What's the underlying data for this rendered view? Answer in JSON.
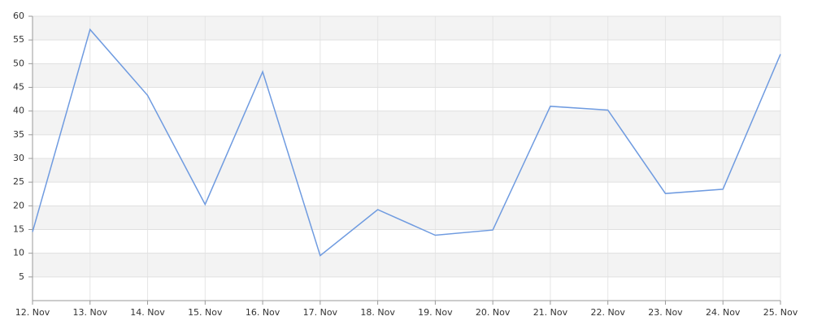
{
  "chart_data": {
    "type": "line",
    "categories": [
      "12. Nov",
      "13. Nov",
      "14. Nov",
      "15. Nov",
      "16. Nov",
      "17. Nov",
      "18. Nov",
      "19. Nov",
      "20. Nov",
      "21. Nov",
      "22. Nov",
      "23. Nov",
      "24. Nov",
      "25. Nov"
    ],
    "series": [
      {
        "color": "#6f9be0",
        "values": [
          14.5,
          57.2,
          43.3,
          20.3,
          48.3,
          9.5,
          19.2,
          13.8,
          14.9,
          41,
          40.2,
          22.6,
          23.5,
          52
        ]
      }
    ],
    "ylim": [
      0,
      60
    ],
    "yticks": [
      5,
      10,
      15,
      20,
      25,
      30,
      35,
      40,
      45,
      50,
      55,
      60
    ],
    "grid": true
  }
}
